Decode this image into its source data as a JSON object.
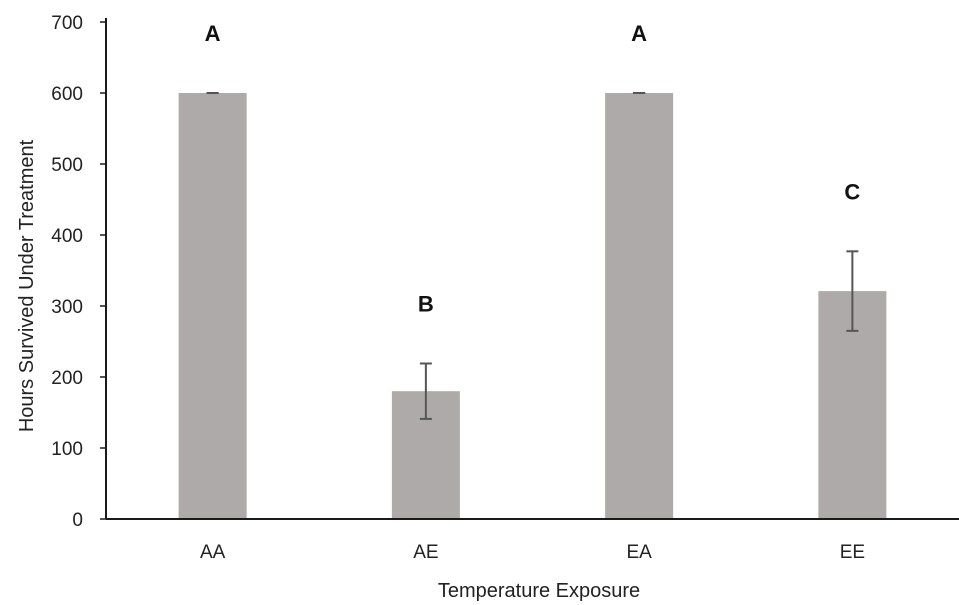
{
  "chart_data": {
    "type": "bar",
    "categories": [
      "AA",
      "AE",
      "EA",
      "EE"
    ],
    "values": [
      600,
      180,
      600,
      321
    ],
    "error": [
      0,
      39,
      0,
      56
    ],
    "significance_letters": [
      "A",
      "B",
      "A",
      "C"
    ],
    "title": "",
    "xlabel": "Temperature Exposure",
    "ylabel": "Hours Survived Under Treatment",
    "ylim": [
      0,
      700
    ],
    "yticks": [
      0,
      100,
      200,
      300,
      400,
      500,
      600,
      700
    ],
    "grid": false,
    "legend": "none",
    "colors": {
      "bar": "#aeaaa9",
      "axis": "#1a1a1a",
      "error_bar": "#555555"
    }
  }
}
